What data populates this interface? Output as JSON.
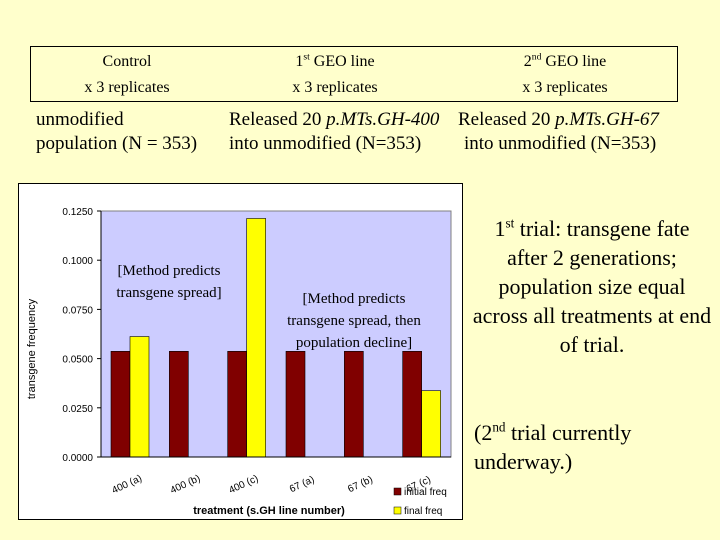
{
  "header": {
    "col1": {
      "line1": "Control",
      "line2": "x 3 replicates"
    },
    "col2": {
      "line1_main": "1",
      "line1_sup": "st",
      "line1_rest": " GEO line",
      "line2": "x 3 replicates"
    },
    "col3": {
      "line1_main": "2",
      "line1_sup": "nd",
      "line1_rest": " GEO line",
      "line2": "x 3 replicates"
    }
  },
  "descriptions": {
    "d1_line1": "unmodified",
    "d1_line2": "population (N = 353)",
    "d2_line1_pre": "Released 20 ",
    "d2_line1_it": "p.MTs.GH-400",
    "d2_line2": "into unmodified (N=353)",
    "d3_line1_pre": "Released 20 ",
    "d3_line1_it": "p.MTs.GH-67",
    "d3_line2": "into unmodified (N=353)"
  },
  "notes": {
    "note1_line1": "[Method predicts",
    "note1_line2": "transgene spread]",
    "note2_line1": "[Method predicts",
    "note2_line2": "transgene spread, then",
    "note2_line3": "population decline]"
  },
  "side": {
    "trial1_main": "1",
    "trial1_sup": "st",
    "trial1_rest": " trial: transgene fate after 2 generations; population size equal across all treatments at end of trial.",
    "trial2_open": "(2",
    "trial2_sup": "nd",
    "trial2_rest": " trial currently underway.)"
  },
  "chart_data": {
    "type": "bar",
    "categories": [
      "400 (a)",
      "400 (b)",
      "400 (c)",
      "67 (a)",
      "67 (b)",
      "67 (c)"
    ],
    "series": [
      {
        "name": "initial freq",
        "color": "#800000",
        "values": [
          0.0537,
          0.0537,
          0.0537,
          0.0537,
          0.0537,
          0.0537
        ]
      },
      {
        "name": "final freq",
        "color": "#ffff00",
        "values": [
          0.0612,
          0,
          0.1212,
          0,
          0,
          0.0337
        ]
      }
    ],
    "xlabel": "treatment (s.GH line number)",
    "ylabel": "transgene frequency",
    "ylim": [
      0,
      0.125
    ],
    "yticks": [
      "0.0000",
      "0.0250",
      "0.0500",
      "0.0750",
      "0.1000",
      "0.1250"
    ],
    "plot_background": "#ccccff",
    "legend_position": "bottom-right"
  }
}
